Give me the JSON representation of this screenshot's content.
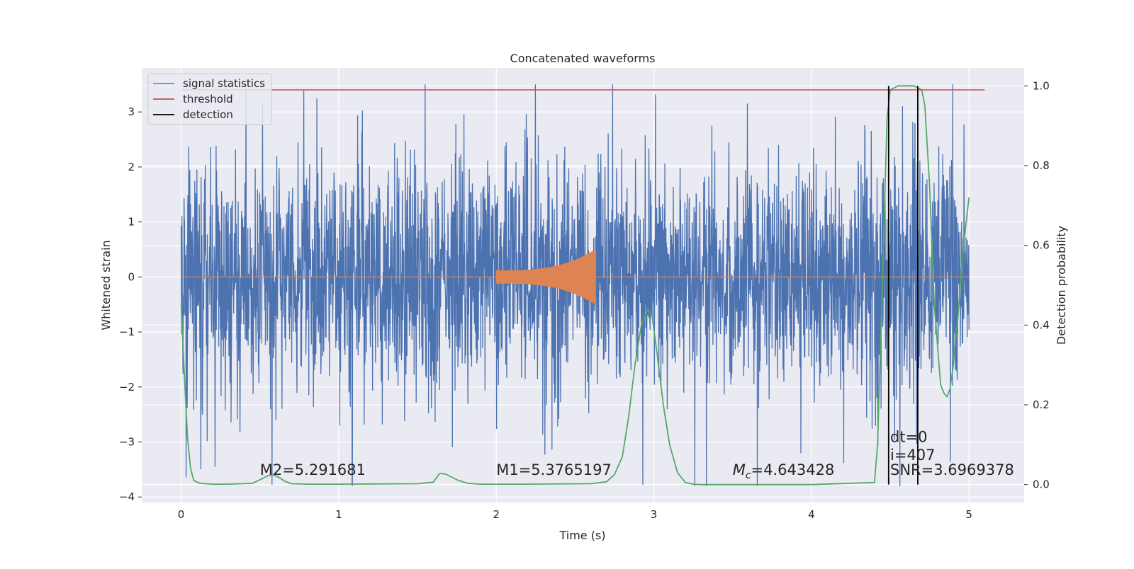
{
  "chart_data": {
    "type": "line",
    "title": "Concatenated waveforms",
    "xlabel": "Time (s)",
    "ylabel": "Whitened strain",
    "y2label": "Detection probability",
    "xlim": [
      -0.25,
      5.35
    ],
    "ylim": [
      -4.1,
      3.8
    ],
    "y2lim": [
      -0.045,
      1.045
    ],
    "xticks": [
      0,
      1,
      2,
      3,
      4,
      5
    ],
    "yticks": [
      -4,
      -3,
      -2,
      -1,
      0,
      1,
      2,
      3
    ],
    "y2ticks": [
      0.0,
      0.2,
      0.4,
      0.6,
      0.8,
      1.0
    ],
    "xtick_labels": [
      "0",
      "1",
      "2",
      "3",
      "4",
      "5"
    ],
    "ytick_labels": [
      "−4",
      "−3",
      "−2",
      "−1",
      "0",
      "1",
      "2",
      "3"
    ],
    "y2tick_labels": [
      "0.0",
      "0.2",
      "0.4",
      "0.6",
      "0.8",
      "1.0"
    ],
    "grid": true,
    "legend_position": "top-left",
    "style": {
      "background": "#eaeaf2",
      "grid_color": "#ffffff",
      "strain_color": "#4c72b0",
      "template_color": "#dd8452",
      "stats_color": "#55a868",
      "threshold_color": "#c44e52",
      "detection_color": "#000000"
    },
    "series": [
      {
        "name": "whitened strain",
        "axis": "left",
        "kind": "noise",
        "x_range": [
          0,
          5
        ],
        "amplitude_envelope": 3.0
      },
      {
        "name": "template waveform",
        "axis": "left",
        "kind": "chirp",
        "x_range": [
          0,
          5
        ],
        "chirp_range": [
          2.0,
          2.63
        ],
        "start_amplitude": 0.12,
        "end_amplitude": 0.5
      },
      {
        "name": "signal statistics",
        "axis": "right",
        "x": [
          0.0,
          0.02,
          0.04,
          0.06,
          0.08,
          0.12,
          0.2,
          0.3,
          0.45,
          0.5,
          0.55,
          0.58,
          0.62,
          0.66,
          0.7,
          0.8,
          1.0,
          1.5,
          1.6,
          1.64,
          1.68,
          1.72,
          1.76,
          1.82,
          1.9,
          2.2,
          2.6,
          2.7,
          2.75,
          2.8,
          2.84,
          2.88,
          2.92,
          2.96,
          2.99,
          3.02,
          3.06,
          3.1,
          3.15,
          3.2,
          3.25,
          3.3,
          3.6,
          4.0,
          4.4,
          4.42,
          4.45,
          4.48,
          4.5,
          4.55,
          4.6,
          4.65,
          4.7,
          4.72,
          4.75,
          4.78,
          4.82,
          4.84,
          4.86,
          4.88,
          4.9,
          4.93,
          4.96,
          5.0
        ],
        "y": [
          0.45,
          0.28,
          0.12,
          0.04,
          0.01,
          0.003,
          0.001,
          0.001,
          0.003,
          0.012,
          0.022,
          0.025,
          0.018,
          0.008,
          0.002,
          0.001,
          0.001,
          0.002,
          0.006,
          0.028,
          0.026,
          0.018,
          0.01,
          0.003,
          0.001,
          0.001,
          0.002,
          0.007,
          0.025,
          0.07,
          0.17,
          0.3,
          0.4,
          0.44,
          0.42,
          0.33,
          0.2,
          0.1,
          0.03,
          0.005,
          0.001,
          0.0,
          0.0,
          0.0,
          0.005,
          0.1,
          0.5,
          0.92,
          0.99,
          1.0,
          1.0,
          1.0,
          0.99,
          0.95,
          0.75,
          0.45,
          0.25,
          0.23,
          0.22,
          0.24,
          0.3,
          0.42,
          0.58,
          0.72
        ]
      },
      {
        "name": "threshold",
        "axis": "right",
        "x": [
          0.0,
          5.1
        ],
        "y": [
          0.99,
          0.99
        ]
      },
      {
        "name": "detection",
        "axis": "right",
        "x_positions": [
          4.49,
          4.675
        ],
        "y_range": [
          0.0,
          1.0
        ]
      }
    ],
    "legend": [
      {
        "label": "signal statistics",
        "color": "#55a868"
      },
      {
        "label": "threshold",
        "color": "#c44e52"
      },
      {
        "label": "detection",
        "color": "#000000"
      }
    ],
    "annotations": [
      {
        "text": "M2=5.291681",
        "x": 0.5,
        "y": -3.6
      },
      {
        "text": "M1=5.3765197",
        "x": 2.0,
        "y": -3.6
      },
      {
        "text": "M_c=4.643428",
        "x": 3.5,
        "y": -3.6,
        "math": true,
        "main": "M",
        "sub": "c",
        "rest": "=4.643428"
      },
      {
        "text": "dt=0",
        "x": 4.5,
        "y": -3.0
      },
      {
        "text": "i=407",
        "x": 4.5,
        "y": -3.33
      },
      {
        "text": "SNR=3.6969378",
        "x": 4.5,
        "y": -3.6
      }
    ]
  }
}
